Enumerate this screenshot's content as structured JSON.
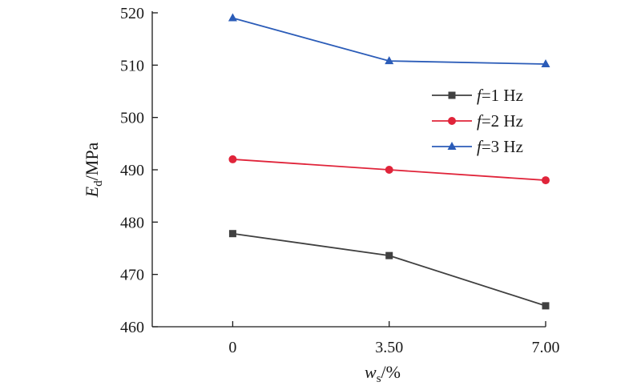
{
  "chart_data": {
    "type": "line",
    "categories": [
      "0",
      "3.50",
      "7.00"
    ],
    "x": [
      0,
      3.5,
      7.0
    ],
    "xlim": [
      -1.8,
      7.0
    ],
    "ylim": [
      460,
      520
    ],
    "yticks": [
      460,
      470,
      480,
      490,
      500,
      510,
      520
    ],
    "ytick_labels": [
      "460",
      "470",
      "480",
      "490",
      "500",
      "510",
      "520"
    ],
    "xlabel": {
      "main": "w",
      "sub": "s",
      "unit": "/%"
    },
    "ylabel": {
      "main": "E",
      "sub": "d",
      "unit": "/MPa"
    },
    "grid": false,
    "legend_position": "right",
    "series": [
      {
        "name_italic": "f",
        "name_rest": "=1 Hz",
        "values": [
          477.8,
          473.6,
          464.0
        ],
        "color": "#404040",
        "marker": "square"
      },
      {
        "name_italic": "f",
        "name_rest": "=2 Hz",
        "values": [
          492.0,
          490.0,
          488.0
        ],
        "color": "#e0243a",
        "marker": "circle"
      },
      {
        "name_italic": "f",
        "name_rest": "=3 Hz",
        "values": [
          519.0,
          510.8,
          510.2
        ],
        "color": "#2b5cb8",
        "marker": "triangle"
      }
    ]
  }
}
